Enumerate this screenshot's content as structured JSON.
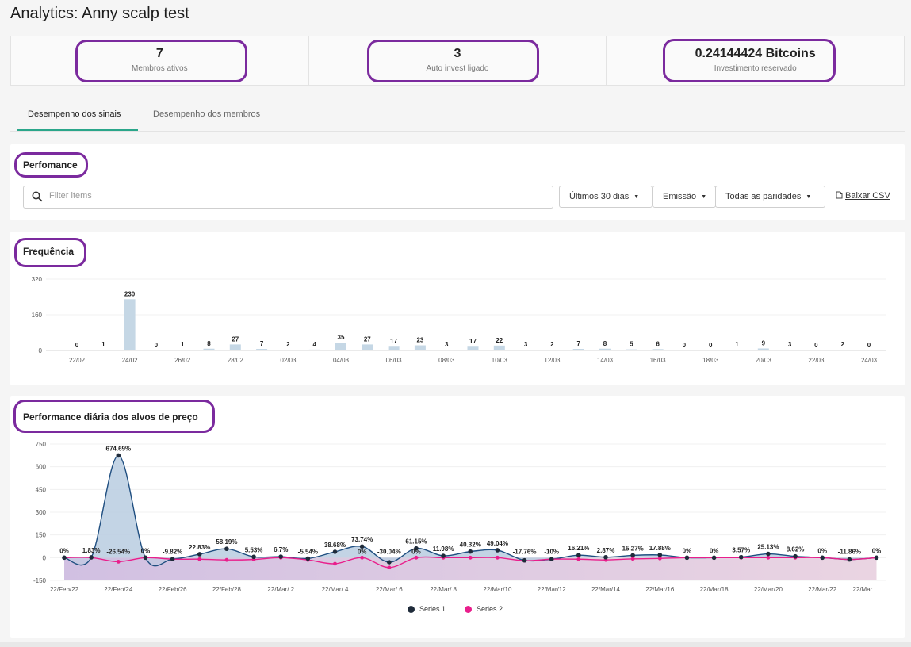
{
  "page": {
    "title": "Analytics: Anny scalp test"
  },
  "stats": [
    {
      "value": "7",
      "label": "Membros ativos"
    },
    {
      "value": "3",
      "label": "Auto invest ligado"
    },
    {
      "value": "0.24144424 Bitcoins",
      "label": "Investimento reservado"
    }
  ],
  "tabs": [
    {
      "label": "Desempenho dos sinais",
      "active": true
    },
    {
      "label": "Desempenho dos membros",
      "active": false
    }
  ],
  "performance": {
    "title": "Perfomance",
    "filter_placeholder": "Filter items",
    "filter_value": "",
    "period": "Últimos 30 dias",
    "type": "Emissão",
    "pairs": "Todas as paridades",
    "download": "Baixar CSV"
  },
  "colors": {
    "accent": "#2aa68a",
    "highlight": "#7b2a9e",
    "series1": "#1f2b3a",
    "series2": "#e91e8c",
    "bar": "#c5d7e5"
  },
  "chart_data": [
    {
      "type": "bar",
      "title": "Frequência",
      "categories": [
        "22/02",
        "23/02",
        "24/02",
        "25/02",
        "26/02",
        "27/02",
        "28/02",
        "01/03",
        "02/03",
        "03/03",
        "04/03",
        "05/03",
        "06/03",
        "07/03",
        "08/03",
        "09/03",
        "10/03",
        "11/03",
        "12/03",
        "13/03",
        "14/03",
        "15/03",
        "16/03",
        "17/03",
        "18/03",
        "19/03",
        "20/03",
        "21/03",
        "22/03",
        "23/03",
        "24/03"
      ],
      "values": [
        0,
        1,
        230,
        0,
        1,
        8,
        27,
        7,
        2,
        4,
        35,
        27,
        17,
        23,
        3,
        17,
        22,
        3,
        2,
        7,
        8,
        5,
        6,
        0,
        0,
        1,
        9,
        3,
        0,
        2,
        0
      ],
      "xticks": [
        "22/02",
        "24/02",
        "26/02",
        "28/02",
        "02/03",
        "04/03",
        "06/03",
        "08/03",
        "10/03",
        "12/03",
        "14/03",
        "16/03",
        "18/03",
        "20/03",
        "22/03",
        "24/03"
      ],
      "ylim": [
        0,
        320
      ],
      "yticks": [
        0,
        160,
        320
      ],
      "grid": true
    },
    {
      "type": "area",
      "title": "Performance diária dos alvos de preço",
      "categories": [
        "22/Feb/22",
        "22/Feb/23",
        "22/Feb/24",
        "22/Feb/25",
        "22/Feb/26",
        "22/Feb/27",
        "22/Feb/28",
        "22/Mar/ 1",
        "22/Mar/ 2",
        "22/Mar/ 3",
        "22/Mar/ 4",
        "22/Mar/ 5",
        "22/Mar/ 6",
        "22/Mar/ 7",
        "22/Mar/ 8",
        "22/Mar/ 9",
        "22/Mar/10",
        "22/Mar/11",
        "22/Mar/12",
        "22/Mar/13",
        "22/Mar/14",
        "22/Mar/15",
        "22/Mar/16",
        "22/Mar/17",
        "22/Mar/18",
        "22/Mar/19",
        "22/Mar/20",
        "22/Mar/21",
        "22/Mar/22",
        "22/Mar/23",
        "22/Mar/24"
      ],
      "xticks": [
        "22/Feb/22",
        "22/Feb/24",
        "22/Feb/26",
        "22/Feb/28",
        "22/Mar/ 2",
        "22/Mar/ 4",
        "22/Mar/ 6",
        "22/Mar/ 8",
        "22/Mar/10",
        "22/Mar/12",
        "22/Mar/14",
        "22/Mar/16",
        "22/Mar/18",
        "22/Mar/20",
        "22/Mar/22",
        "22/Mar..."
      ],
      "series": [
        {
          "name": "Series 1",
          "values": [
            0,
            1.83,
            674.69,
            0,
            -9.82,
            22.83,
            58.19,
            5.53,
            6.7,
            -5.54,
            38.68,
            73.74,
            -30.04,
            61.15,
            11.98,
            40.32,
            49.04,
            -17.76,
            -10,
            16.21,
            2.87,
            15.27,
            17.88,
            0,
            0,
            3.57,
            25.13,
            8.62,
            0,
            -11.86,
            0
          ],
          "labels": [
            "0%",
            "1.83%",
            "674.69%",
            "0%",
            "-9.82%",
            "22.83%",
            "58.19%",
            "5.53%",
            "6.7%",
            "-5.54%",
            "38.68%",
            "73.74%",
            "-30.04%",
            "61.15%",
            "11.98%",
            "40.32%",
            "49.04%",
            "-17.76%",
            "-10%",
            "16.21%",
            "2.87%",
            "15.27%",
            "17.88%",
            "0%",
            "0%",
            "3.57%",
            "25.13%",
            "8.62%",
            "0%",
            "-11.86%",
            "0%"
          ]
        },
        {
          "name": "Series 2",
          "values": [
            0,
            0,
            -26.54,
            0,
            -9.82,
            -10,
            -15,
            -12,
            0,
            -15,
            -40,
            0,
            -65,
            0,
            0,
            0,
            0,
            -20,
            -10,
            -10,
            -15,
            -8,
            -5,
            0,
            0,
            0,
            0,
            0,
            0,
            -11.86,
            0
          ],
          "labels": [
            "",
            "",
            "-26.54%",
            "",
            "",
            "",
            "",
            "",
            "",
            "",
            "",
            "0%",
            "",
            "0%",
            "",
            "",
            "",
            "",
            "",
            "",
            "",
            "",
            "",
            "",
            "",
            "",
            "",
            "",
            "",
            "",
            ""
          ]
        }
      ],
      "ylim": [
        -150,
        750
      ],
      "yticks": [
        -150,
        0,
        150,
        300,
        450,
        600,
        750
      ],
      "legend": "bottom-center",
      "grid": true
    }
  ]
}
